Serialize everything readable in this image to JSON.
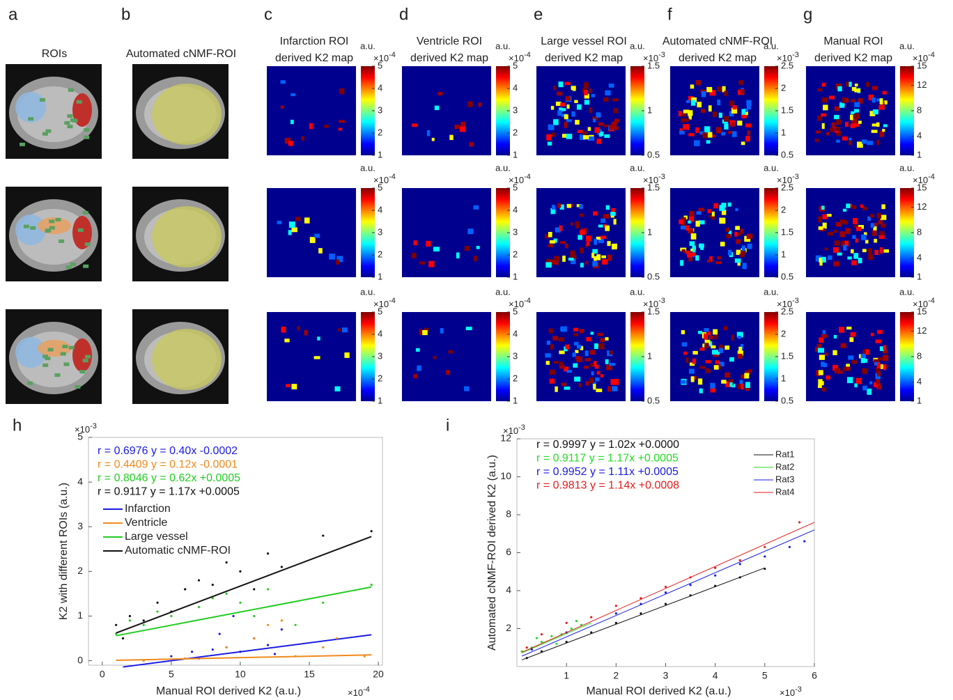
{
  "panels": [
    {
      "label": "a",
      "title": "ROIs"
    },
    {
      "label": "b",
      "title": "Automated cNMF-ROI"
    }
  ],
  "maps": [
    {
      "label": "c",
      "title": [
        "Infarction ROI",
        "derived K2 map"
      ],
      "unit": "a.u.",
      "multiplier": "×10",
      "exponent": "-4",
      "clim": [
        1,
        5
      ],
      "cticks": [
        1,
        2,
        3,
        4,
        5
      ]
    },
    {
      "label": "d",
      "title": [
        "Ventricle ROI",
        "derived K2 map"
      ],
      "unit": "a.u.",
      "multiplier": "×10",
      "exponent": "-4",
      "clim": [
        1,
        5
      ],
      "cticks": [
        1,
        2,
        3,
        4,
        5
      ]
    },
    {
      "label": "e",
      "title": [
        "Large vessel ROI",
        "derived K2 map"
      ],
      "unit": "a.u.",
      "multiplier": "×10",
      "exponent": "-3",
      "clim": [
        0.5,
        1.5
      ],
      "cticks": [
        0.5,
        1,
        1.5
      ]
    },
    {
      "label": "f",
      "title": [
        "Automated cNMF-ROI",
        "derived K2 map"
      ],
      "unit": "a.u.",
      "multiplier": "×10",
      "exponent": "-3",
      "clim": [
        0.5,
        2.5
      ],
      "cticks": [
        0.5,
        1,
        1.5,
        2,
        2.5
      ]
    },
    {
      "label": "g",
      "title": [
        "Manual ROI",
        "derived K2 map"
      ],
      "unit": "a.u.",
      "multiplier": "×10",
      "exponent": "-4",
      "clim": [
        1,
        15
      ],
      "cticks": [
        1,
        4,
        8,
        12,
        15
      ]
    }
  ],
  "chart_data": [
    {
      "type": "scatter",
      "label": "h",
      "xlabel": "Manual ROI derived K2 (a.u.)",
      "ylabel": "K2 with different ROIs (a.u.)",
      "x_multiplier": "×10",
      "x_exponent": "-4",
      "y_multiplier": "×10",
      "y_exponent": "-3",
      "xlim": [
        -1,
        20.3
      ],
      "ylim": [
        -0.1,
        5
      ],
      "xticks": [
        0,
        5,
        10,
        15,
        20
      ],
      "yticks": [
        0,
        1,
        2,
        3,
        4,
        5
      ],
      "annotations": [
        {
          "text": "r = 0.6976  y = 0.40x -0.0002",
          "color": "#1a1ae6"
        },
        {
          "text": "r = 0.4409  y = 0.12x -0.0001",
          "color": "#f08a1c"
        },
        {
          "text": "r = 0.8046  y = 0.62x +0.0005",
          "color": "#22cc22"
        },
        {
          "text": "r = 0.9117  y = 1.17x +0.0005",
          "color": "#111111"
        }
      ],
      "series": [
        {
          "name": "Infarction",
          "color": "#1a1ae6",
          "x": [
            5,
            6.5,
            7,
            8,
            9,
            10,
            11,
            12,
            13,
            9.5,
            12.5,
            8.5
          ],
          "values": [
            0.1,
            0.2,
            0.05,
            0.25,
            0.3,
            0.2,
            0.5,
            0.35,
            0.7,
            1.0,
            0.15,
            0.6
          ],
          "fit_x": [
            1.5,
            19.5
          ],
          "fit_y": [
            -0.14,
            0.58
          ]
        },
        {
          "name": "Ventricle",
          "color": "#f08a1c",
          "x": [
            3,
            6,
            9,
            11,
            12,
            13,
            14,
            16,
            17,
            19
          ],
          "values": [
            0,
            0.05,
            0.3,
            0.5,
            0.8,
            0.9,
            0.1,
            0.3,
            0.5,
            0.1
          ],
          "fit_x": [
            1,
            19.5
          ],
          "fit_y": [
            0.01,
            0.13
          ]
        },
        {
          "name": "Large vessel",
          "color": "#22cc22",
          "x": [
            1,
            1.5,
            2,
            3,
            4,
            5,
            6,
            7,
            8,
            9,
            10,
            11,
            12,
            14,
            16,
            19.5
          ],
          "values": [
            0.6,
            0.5,
            0.9,
            0.8,
            1.1,
            1.0,
            1.6,
            1.2,
            1.4,
            1.5,
            1.3,
            1.0,
            1.6,
            0.8,
            1.3,
            1.7
          ],
          "fit_x": [
            1,
            19.5
          ],
          "fit_y": [
            0.56,
            1.65
          ]
        },
        {
          "name": "Automatic cNMF-ROI",
          "color": "#111111",
          "x": [
            1,
            1.5,
            2,
            3,
            4,
            5,
            6,
            7,
            8,
            9,
            10,
            11,
            12,
            13,
            16,
            19.5
          ],
          "values": [
            0.8,
            0.5,
            1.0,
            0.9,
            1.3,
            1.1,
            1.6,
            1.8,
            1.7,
            2.2,
            2.0,
            1.6,
            2.4,
            2.1,
            2.8,
            2.9
          ],
          "fit_x": [
            1,
            19.5
          ],
          "fit_y": [
            0.62,
            2.78
          ]
        }
      ]
    },
    {
      "type": "scatter",
      "label": "i",
      "xlabel": "Manual ROI derived K2 (a.u.)",
      "ylabel": "Automated cNMF-ROI derived K2 (a.u.)",
      "x_multiplier": "×10",
      "x_exponent": "-3",
      "y_multiplier": "×10",
      "y_exponent": "-3",
      "xlim": [
        0,
        6
      ],
      "ylim": [
        0,
        12
      ],
      "xticks": [
        1,
        2,
        3,
        4,
        5,
        6
      ],
      "yticks": [
        2,
        4,
        6,
        8,
        10,
        12
      ],
      "annotations": [
        {
          "text": "r = 0.9997  y = 1.02x +0.0000",
          "color": "#111111"
        },
        {
          "text": "r = 0.9117  y = 1.17x +0.0005",
          "color": "#22dd22"
        },
        {
          "text": "r = 0.9952  y = 1.11x +0.0005",
          "color": "#1a1ae6"
        },
        {
          "text": "r = 0.9813  y = 1.14x +0.0008",
          "color": "#e61a1a"
        }
      ],
      "series": [
        {
          "name": "Rat1",
          "color": "#111111",
          "x": [
            0.2,
            0.5,
            1,
            1.5,
            2,
            2.5,
            3,
            3.5,
            4,
            4.5,
            5
          ],
          "values": [
            0.45,
            0.8,
            1.3,
            1.8,
            2.3,
            2.8,
            3.3,
            3.75,
            4.25,
            4.7,
            5.15
          ],
          "fit_x": [
            0.1,
            5
          ],
          "fit_y": [
            0.35,
            5.2
          ]
        },
        {
          "name": "Rat2",
          "color": "#22dd22",
          "x": [
            0.1,
            0.3,
            0.5,
            0.7,
            0.9,
            1.1,
            1.3,
            0.4,
            0.8,
            1.2
          ],
          "values": [
            0.8,
            1.0,
            1.3,
            1.6,
            1.7,
            2.0,
            2.2,
            1.5,
            1.2,
            2.4
          ],
          "fit_x": [
            0.1,
            1.5
          ],
          "fit_y": [
            0.72,
            2.3
          ]
        },
        {
          "name": "Rat3",
          "color": "#1a1ae6",
          "x": [
            0.3,
            1,
            2,
            2.5,
            3,
            3.5,
            4,
            4.5,
            5,
            5.5,
            5.8
          ],
          "values": [
            0.9,
            1.8,
            2.8,
            3.3,
            3.9,
            4.3,
            4.8,
            5.4,
            5.8,
            6.3,
            6.6
          ],
          "fit_x": [
            0.1,
            6
          ],
          "fit_y": [
            0.55,
            7.2
          ]
        },
        {
          "name": "Rat4",
          "color": "#e61a1a",
          "x": [
            0.2,
            0.5,
            1,
            1.5,
            2,
            2.5,
            3,
            3.5,
            4,
            4.5,
            5,
            5.7
          ],
          "values": [
            1.0,
            1.7,
            2.3,
            2.6,
            3.2,
            3.6,
            4.2,
            4.7,
            5.2,
            5.6,
            6.3,
            7.6
          ],
          "fit_x": [
            0.1,
            6
          ],
          "fit_y": [
            0.75,
            7.6
          ]
        }
      ]
    }
  ]
}
